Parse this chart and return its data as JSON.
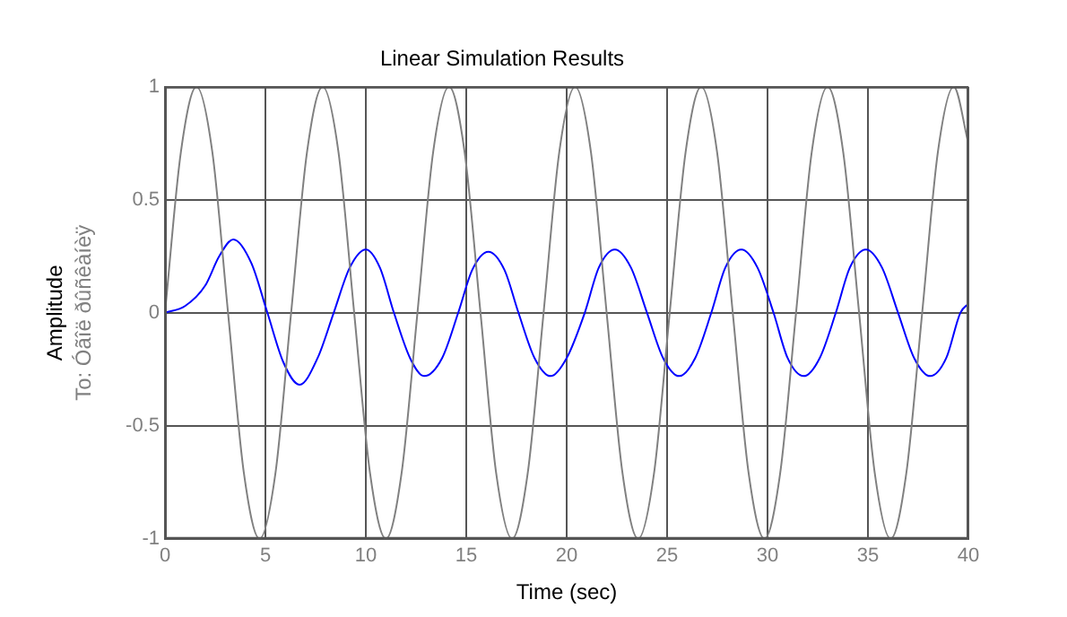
{
  "chart_data": {
    "type": "line",
    "title": "Linear Simulation Results",
    "xlabel": "Time (sec)",
    "ylabel": "Amplitude",
    "annotations": [
      "To: Óãîë ðûñêàíèÿ"
    ],
    "xlim": [
      0,
      40
    ],
    "xticks": [
      0,
      5,
      10,
      15,
      20,
      25,
      30,
      35,
      40
    ],
    "ylim": [
      -1,
      1
    ],
    "yticks": [
      -1,
      -0.5,
      0,
      0.5,
      1
    ],
    "grid": true,
    "marker": "none",
    "line_style": "solid",
    "series": [
      {
        "color": "#808080",
        "x": [
          0,
          0.79,
          1.57,
          2.36,
          3.14,
          3.93,
          4.71,
          5.5,
          6.28,
          7.07,
          7.85,
          8.64,
          9.42,
          10.21,
          11,
          11.78,
          12.57,
          13.35,
          14.14,
          14.92,
          15.71,
          16.49,
          17.28,
          18.06,
          18.85,
          19.63,
          20.42,
          21.21,
          21.99,
          22.78,
          23.56,
          24.35,
          25.13,
          25.92,
          26.7,
          27.49,
          28.27,
          29.06,
          29.85,
          30.63,
          31.42,
          32.2,
          32.99,
          33.77,
          34.56,
          35.34,
          36.13,
          36.91,
          37.7,
          38.48,
          39.27,
          40
        ],
        "values": [
          0,
          0.71,
          1,
          0.71,
          0,
          -0.71,
          -1,
          -0.71,
          0,
          0.71,
          1,
          0.71,
          0,
          -0.71,
          -1,
          -0.71,
          0,
          0.71,
          1,
          0.71,
          0,
          -0.71,
          -1,
          -0.71,
          0,
          0.71,
          1,
          0.71,
          0,
          -0.71,
          -1,
          -0.71,
          0,
          0.71,
          1,
          0.71,
          0,
          -0.71,
          -1,
          -0.71,
          0,
          0.71,
          1,
          0.71,
          0,
          -0.71,
          -1,
          -0.71,
          0,
          0.71,
          1,
          0.75
        ]
      },
      {
        "color": "#0000ff",
        "x": [
          0,
          1,
          2,
          2.7,
          3.4,
          4.3,
          5.1,
          5.9,
          6.7,
          7.6,
          8.4,
          9.2,
          10,
          10.7,
          11.4,
          12.2,
          12.9,
          13.8,
          14.6,
          15.3,
          16.1,
          16.9,
          17.6,
          18.4,
          19.2,
          20,
          20.9,
          21.6,
          22.4,
          23.2,
          24,
          24.8,
          25.6,
          26.4,
          27.2,
          27.9,
          28.7,
          29.5,
          30.3,
          31,
          31.8,
          32.6,
          33.4,
          34.1,
          34.9,
          35.7,
          36.5,
          37.3,
          38.1,
          38.9,
          39.6,
          40
        ],
        "values": [
          0,
          0.03,
          0.12,
          0.25,
          0.325,
          0.22,
          0,
          -0.22,
          -0.318,
          -0.2,
          0,
          0.2,
          0.28,
          0.2,
          0,
          -0.2,
          -0.28,
          -0.2,
          0,
          0.19,
          0.27,
          0.19,
          0,
          -0.2,
          -0.28,
          -0.2,
          0,
          0.2,
          0.28,
          0.2,
          0,
          -0.2,
          -0.28,
          -0.2,
          0,
          0.2,
          0.28,
          0.2,
          0,
          -0.2,
          -0.28,
          -0.2,
          0,
          0.2,
          0.28,
          0.2,
          0,
          -0.2,
          -0.28,
          -0.2,
          0,
          0.04
        ]
      }
    ]
  }
}
